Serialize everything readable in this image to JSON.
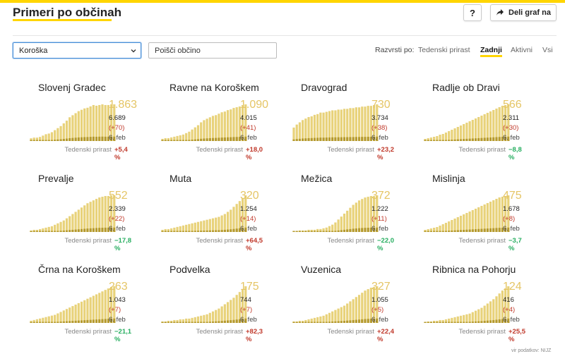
{
  "header": {
    "title": "Primeri po občinah",
    "help_label": "?",
    "share_label": "Deli graf na"
  },
  "filters": {
    "region_selected": "Koroška",
    "search_placeholder": "Poišči občino"
  },
  "sort": {
    "label": "Razvrsti po:",
    "options": [
      "Tedenski prirast",
      "Zadnji",
      "Aktivni",
      "Vsi"
    ],
    "active": "Zadnji"
  },
  "colors": {
    "accent": "#ffd500",
    "bar": "#e8d27a",
    "bar_dark": "#b59a2e",
    "big_number": "#e5c565",
    "up": "#c0392b",
    "down": "#27ae60"
  },
  "growth_label": "Tedenski prirast",
  "source": "vir podatkov: NIJZ",
  "municipalities": [
    {
      "name": "Slovenj Gradec",
      "active": "1.863",
      "total": "6.689",
      "delta": "(+70)",
      "date": "6. feb",
      "growth": "+5,4 %",
      "dir": "up",
      "series": [
        4,
        5,
        5,
        6,
        8,
        10,
        11,
        13,
        16,
        19,
        22,
        26,
        30,
        35,
        38,
        41,
        44,
        46,
        48,
        49,
        51,
        53,
        52,
        53,
        54,
        53,
        53,
        54,
        54
      ]
    },
    {
      "name": "Ravne na Koroškem",
      "active": "1.090",
      "total": "4.015",
      "delta": "(+41)",
      "date": "6. feb",
      "growth": "+18,0 %",
      "dir": "up",
      "series": [
        3,
        4,
        4,
        5,
        6,
        7,
        8,
        9,
        11,
        13,
        16,
        19,
        22,
        26,
        29,
        31,
        33,
        35,
        36,
        38,
        40,
        41,
        43,
        44,
        46,
        47,
        48,
        50,
        51
      ]
    },
    {
      "name": "Dravograd",
      "active": "730",
      "total": "3.734",
      "delta": "(+38)",
      "date": "6. feb",
      "growth": "+23,2 %",
      "dir": "up",
      "series": [
        18,
        22,
        25,
        28,
        30,
        32,
        33,
        35,
        36,
        38,
        38,
        39,
        40,
        41,
        41,
        42,
        42,
        43,
        43,
        44,
        44,
        45,
        45,
        46,
        46,
        47,
        47,
        48,
        49
      ]
    },
    {
      "name": "Radlje ob Dravi",
      "active": "566",
      "total": "2.311",
      "delta": "(+30)",
      "date": "6. feb",
      "growth": "−8,8 %",
      "dir": "down",
      "series": [
        3,
        4,
        5,
        6,
        7,
        9,
        10,
        12,
        14,
        16,
        18,
        20,
        22,
        24,
        26,
        28,
        30,
        32,
        34,
        36,
        38,
        40,
        42,
        44,
        46,
        48,
        50,
        51,
        52
      ]
    },
    {
      "name": "Prevalje",
      "active": "552",
      "total": "2.339",
      "delta": "(+22)",
      "date": "6. feb",
      "growth": "−17,8 %",
      "dir": "down",
      "series": [
        2,
        3,
        3,
        4,
        5,
        6,
        7,
        8,
        10,
        12,
        14,
        16,
        19,
        22,
        25,
        28,
        31,
        34,
        37,
        40,
        42,
        44,
        46,
        48,
        49,
        50,
        50,
        51,
        51
      ]
    },
    {
      "name": "Muta",
      "active": "320",
      "total": "1.254",
      "delta": "(+14)",
      "date": "6. feb",
      "growth": "+64,5 %",
      "dir": "up",
      "series": [
        3,
        4,
        4,
        5,
        6,
        7,
        8,
        9,
        10,
        11,
        12,
        13,
        14,
        15,
        16,
        17,
        18,
        19,
        20,
        21,
        23,
        25,
        28,
        31,
        35,
        39,
        43,
        47,
        51
      ]
    },
    {
      "name": "Mežica",
      "active": "372",
      "total": "1.222",
      "delta": "(+11)",
      "date": "6. feb",
      "growth": "−22,0 %",
      "dir": "down",
      "series": [
        1,
        1,
        2,
        2,
        2,
        3,
        3,
        3,
        4,
        4,
        5,
        6,
        8,
        10,
        13,
        17,
        21,
        25,
        29,
        33,
        37,
        40,
        43,
        45,
        47,
        48,
        49,
        49,
        50
      ]
    },
    {
      "name": "Mislinja",
      "active": "475",
      "total": "1.678",
      "delta": "(+8)",
      "date": "6. feb",
      "growth": "−3,7 %",
      "dir": "down",
      "series": [
        3,
        4,
        5,
        6,
        7,
        9,
        11,
        13,
        15,
        17,
        19,
        21,
        23,
        25,
        27,
        29,
        31,
        33,
        35,
        37,
        39,
        41,
        43,
        45,
        47,
        49,
        50,
        51,
        52
      ]
    },
    {
      "name": "Črna na Koroškem",
      "active": "263",
      "total": "1.043",
      "delta": "(+7)",
      "date": "6. feb",
      "growth": "−21,1 %",
      "dir": "down",
      "series": [
        3,
        4,
        5,
        6,
        7,
        8,
        9,
        10,
        11,
        13,
        15,
        17,
        19,
        21,
        23,
        25,
        27,
        29,
        31,
        33,
        35,
        37,
        39,
        41,
        43,
        45,
        47,
        49,
        50
      ]
    },
    {
      "name": "Podvelka",
      "active": "175",
      "total": "744",
      "delta": "(+7)",
      "date": "6. feb",
      "growth": "+82,3 %",
      "dir": "up",
      "series": [
        2,
        2,
        3,
        3,
        4,
        4,
        5,
        5,
        6,
        6,
        7,
        8,
        9,
        10,
        11,
        12,
        14,
        16,
        18,
        20,
        23,
        26,
        29,
        32,
        35,
        39,
        43,
        47,
        51
      ]
    },
    {
      "name": "Vuzenica",
      "active": "327",
      "total": "1.055",
      "delta": "(+5)",
      "date": "6. feb",
      "growth": "+22,4 %",
      "dir": "up",
      "series": [
        2,
        2,
        3,
        3,
        4,
        5,
        6,
        7,
        8,
        9,
        10,
        12,
        14,
        16,
        18,
        20,
        22,
        24,
        27,
        30,
        33,
        36,
        39,
        42,
        45,
        47,
        49,
        50,
        51
      ]
    },
    {
      "name": "Ribnica na Pohorju",
      "active": "124",
      "total": "416",
      "delta": "(+4)",
      "date": "6. feb",
      "growth": "+25,5 %",
      "dir": "up",
      "series": [
        1,
        2,
        2,
        3,
        3,
        4,
        4,
        5,
        6,
        7,
        8,
        9,
        10,
        11,
        12,
        13,
        15,
        17,
        19,
        21,
        24,
        27,
        30,
        33,
        37,
        41,
        45,
        48,
        51
      ]
    }
  ]
}
